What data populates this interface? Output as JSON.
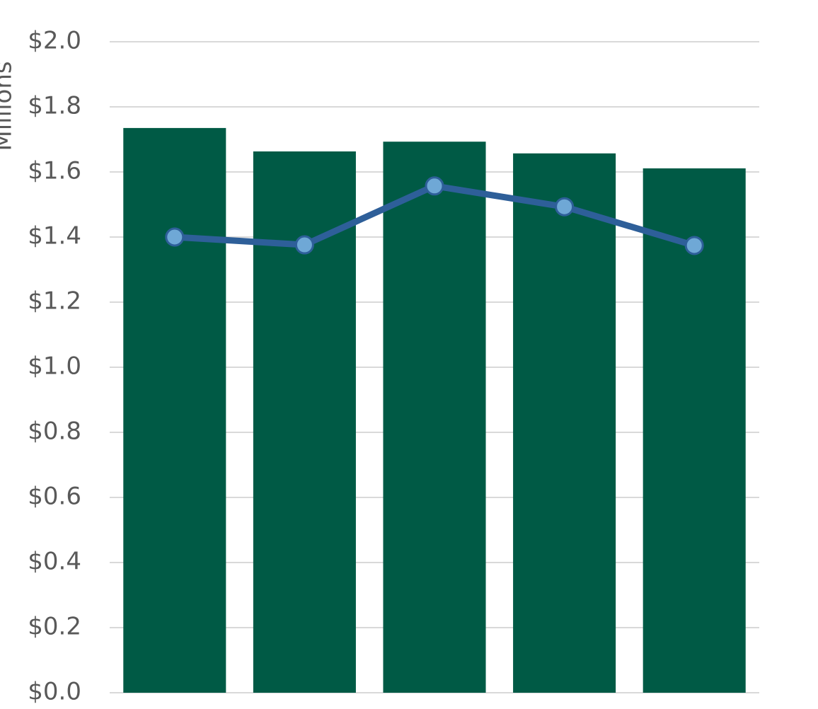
{
  "chart_data": {
    "type": "bar",
    "y_axis_label": "Millions",
    "categories": [
      null,
      null,
      null,
      null,
      null
    ],
    "series": [
      {
        "type": "bar",
        "color": "#005a45",
        "values": [
          1.735,
          1.663,
          1.693,
          1.657,
          1.611
        ]
      },
      {
        "type": "line",
        "color": "#2e5f99",
        "marker_color": "#6fa8d6",
        "values": [
          1.4,
          1.376,
          1.557,
          1.493,
          1.374
        ]
      }
    ],
    "ylim": [
      0,
      2.0
    ],
    "yticks": [
      {
        "value": 0,
        "label": "$0.0"
      },
      {
        "value": 0.2,
        "label": "$0.2"
      },
      {
        "value": 0.4,
        "label": "$0.4"
      },
      {
        "value": 0.6,
        "label": "$0.6"
      },
      {
        "value": 0.8,
        "label": "$0.8"
      },
      {
        "value": 1.0,
        "label": "$1.0"
      },
      {
        "value": 1.2,
        "label": "$1.2"
      },
      {
        "value": 1.4,
        "label": "$1.4"
      },
      {
        "value": 1.6,
        "label": "$1.6"
      },
      {
        "value": 1.8,
        "label": "$1.8"
      },
      {
        "value": 2.0,
        "label": "$2.0"
      }
    ],
    "grid": true
  }
}
